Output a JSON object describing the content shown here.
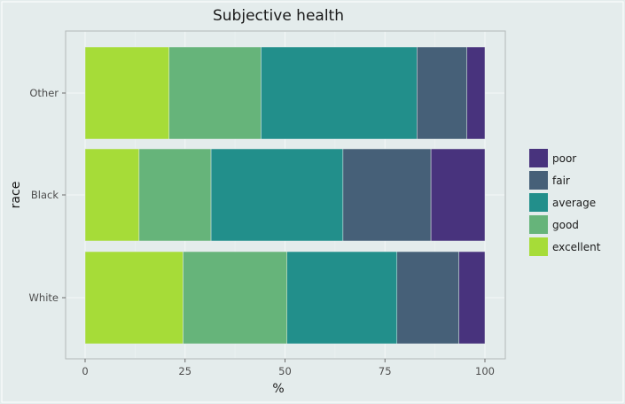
{
  "chart_data": {
    "type": "bar",
    "orientation": "horizontal",
    "stacked": true,
    "title": "Subjective health",
    "xlabel": "%",
    "ylabel": "race",
    "xlim": [
      0,
      100
    ],
    "xticks": [
      0,
      25,
      50,
      75,
      100
    ],
    "grid": true,
    "legend_position": "right",
    "categories": [
      "White",
      "Black",
      "Other"
    ],
    "series": [
      {
        "name": "excellent",
        "color": "#a6dc38",
        "values": [
          24.5,
          13.5,
          21.0
        ]
      },
      {
        "name": "good",
        "color": "#66b47a",
        "values": [
          26.0,
          18.0,
          23.0
        ]
      },
      {
        "name": "average",
        "color": "#228f8b",
        "values": [
          27.5,
          33.0,
          39.0
        ]
      },
      {
        "name": "fair",
        "color": "#466078",
        "values": [
          15.5,
          22.0,
          12.5
        ]
      },
      {
        "name": "poor",
        "color": "#48337d",
        "values": [
          6.5,
          13.5,
          4.5
        ]
      }
    ]
  }
}
